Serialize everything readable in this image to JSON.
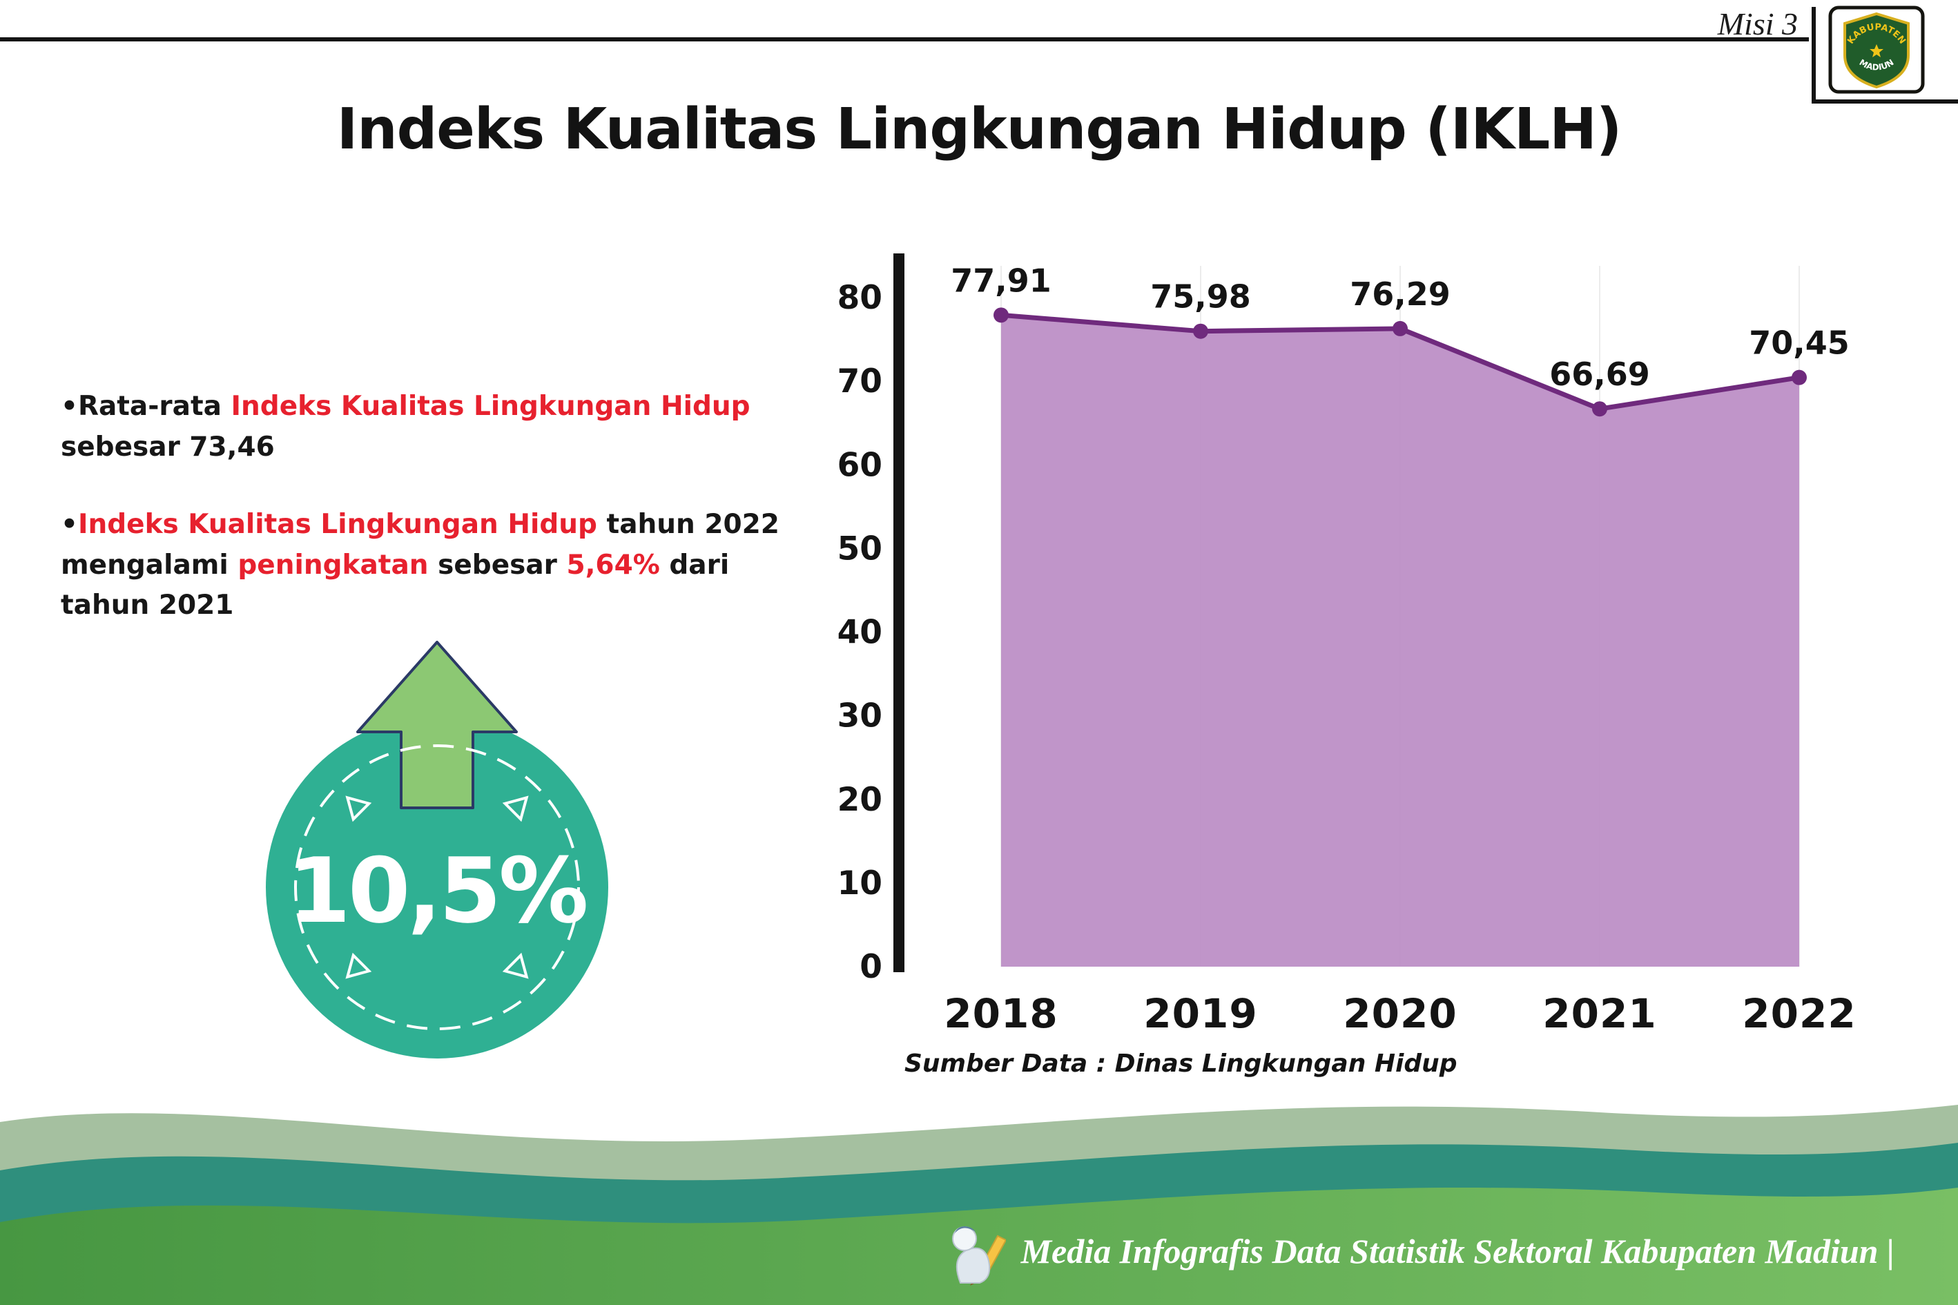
{
  "header": {
    "misi": "Misi 3",
    "title": "Indeks Kualitas Lingkungan Hidup (IKLH)"
  },
  "logo": {
    "text_top": "KABUPATEN",
    "text_bottom": "MADIUN"
  },
  "bullets": {
    "dot": "•",
    "b1": {
      "s1": "Rata-rata ",
      "s2": "Indeks Kualitas Lingkungan Hidup",
      "s3": " sebesar 73,46"
    },
    "b2": {
      "s1": "Indeks Kualitas Lingkungan Hidup",
      "s2": " tahun 2022 mengalami ",
      "s3": "peningkatan",
      "s4": " sebesar ",
      "s5": "5,64%",
      "s6": " dari tahun 2021"
    }
  },
  "badge": {
    "value": "10,5%"
  },
  "chart_data": {
    "type": "area",
    "title": "",
    "categories": [
      "2018",
      "2019",
      "2020",
      "2021",
      "2022"
    ],
    "values": [
      77.91,
      75.98,
      76.29,
      66.69,
      70.45
    ],
    "value_labels": [
      "77,91",
      "75,98",
      "76,29",
      "66,69",
      "70,45"
    ],
    "xlabel": "",
    "ylabel": "",
    "ylim": [
      0,
      80
    ],
    "yticks": [
      0,
      10,
      20,
      30,
      40,
      50,
      60,
      70,
      80
    ],
    "grid": "faint-vertical",
    "legend": "none",
    "area_color": "#bd8fc6",
    "line_color": "#6f2a7d",
    "source": "Sumber Data : Dinas Lingkungan Hidup"
  },
  "footer": {
    "text": "Media Infografis Data Statistik Sektoral Kabupaten Madiun |"
  },
  "colors": {
    "accent_red": "#e7212e",
    "teal_circle": "#2fb093",
    "arrow_green": "#8cc873",
    "purple_fill": "#bd8fc6",
    "purple_line": "#6f2a7d",
    "footer_teal": "#2f8f7d",
    "footer_sage": "#a5c0a0",
    "footer_green_dark": "#479742",
    "footer_green_light": "#79bf64"
  }
}
